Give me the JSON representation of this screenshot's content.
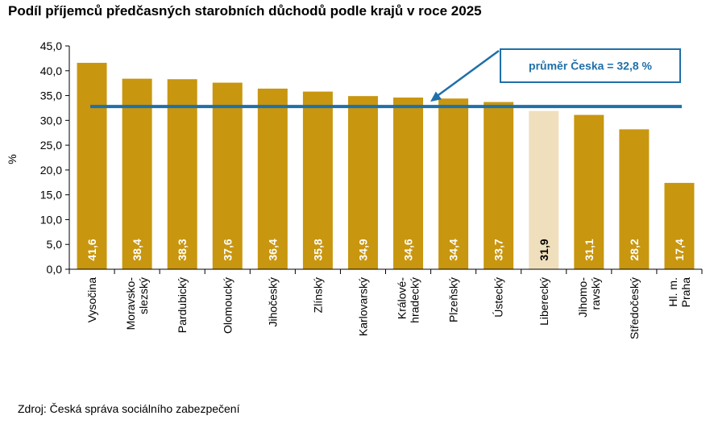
{
  "chart_data": {
    "type": "bar",
    "title": "Podíl příjemců předčasných starobních důchodů podle krajů v roce 2025",
    "ylabel": "%",
    "xlabel": "",
    "ylim": [
      0,
      45
    ],
    "yticks": [
      "0,0",
      "5,0",
      "10,0",
      "15,0",
      "20,0",
      "25,0",
      "30,0",
      "35,0",
      "40,0",
      "45,0"
    ],
    "categories": [
      [
        "Vysočina"
      ],
      [
        "Moravsko-",
        "slezský"
      ],
      [
        "Pardubický"
      ],
      [
        "Olomoucký"
      ],
      [
        "Jihočeský"
      ],
      [
        "Zlínský"
      ],
      [
        "Karlovarský"
      ],
      [
        "Králové-",
        "hradecký"
      ],
      [
        "Plzeňský"
      ],
      [
        "Ústecký"
      ],
      [
        "Liberecký"
      ],
      [
        "Jihomo-",
        "ravský"
      ],
      [
        "Středočeský"
      ],
      [
        "Hl. m.",
        "Praha"
      ]
    ],
    "values": [
      41.6,
      38.4,
      38.3,
      37.6,
      36.4,
      35.8,
      34.9,
      34.6,
      34.4,
      33.7,
      31.9,
      31.1,
      28.2,
      17.4
    ],
    "value_labels": [
      "41,6",
      "38,4",
      "38,3",
      "37,6",
      "36,4",
      "35,8",
      "34,9",
      "34,6",
      "34,4",
      "33,7",
      "31,9",
      "31,1",
      "28,2",
      "17,4"
    ],
    "highlight_index": 10,
    "average": 32.8,
    "average_label": "průměr Česka = 32,8 %",
    "colors": {
      "bar": "#C8960F",
      "highlight_bar": "#F0DFBD",
      "average_line": "#1F6FA8",
      "callout_border": "#1F6FA8",
      "callout_text": "#1F6FA8",
      "label_light": "#FFFFFF",
      "label_dark": "#000000",
      "axis": "#000000"
    },
    "grid": false,
    "legend": "none"
  },
  "source": "Zdroj:  Česká správa sociálního zabezpečení"
}
